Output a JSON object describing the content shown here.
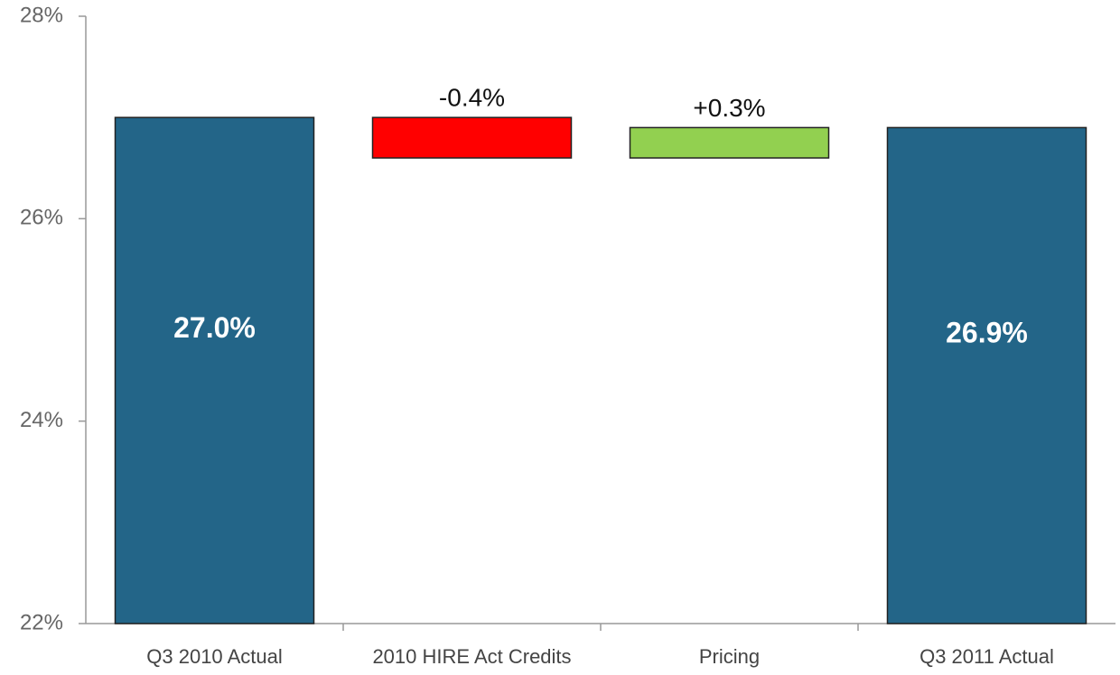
{
  "chart_data": {
    "type": "waterfall",
    "categories": [
      "Q3 2010 Actual",
      "2010 HIRE Act Credits",
      "Pricing",
      "Q3 2011 Actual"
    ],
    "values": [
      27.0,
      -0.4,
      0.3,
      26.9
    ],
    "value_labels": [
      "27.0%",
      "-0.4%",
      "+0.3%",
      "26.9%"
    ],
    "measure": [
      "absolute",
      "relative",
      "relative",
      "absolute"
    ],
    "colors": [
      "#236588",
      "#ff0000",
      "#92d050",
      "#236588"
    ],
    "ylim": [
      22,
      28
    ],
    "yticks": [
      {
        "value": 22,
        "label": "22%"
      },
      {
        "value": 24,
        "label": "24%"
      },
      {
        "value": 26,
        "label": "26%"
      },
      {
        "value": 28,
        "label": "28%"
      }
    ],
    "grid": false
  }
}
